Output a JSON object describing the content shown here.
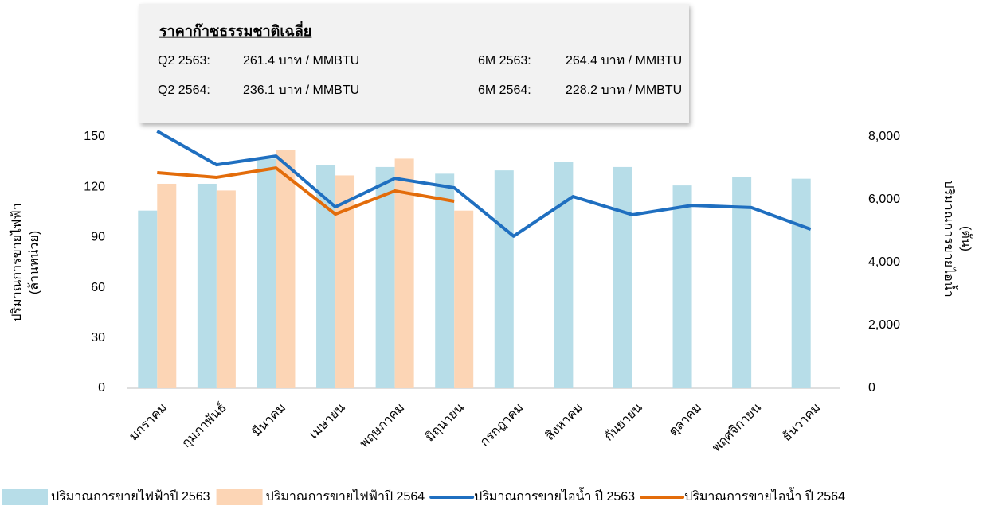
{
  "chart_data": {
    "type": "combo",
    "annotation": {
      "title": "ราคาก๊าซธรรมชาติเฉลี่ย",
      "rows": [
        [
          "Q2 2563:",
          "261.4 บาท / MMBTU",
          "6M 2563:",
          "264.4 บาท / MMBTU"
        ],
        [
          "Q2 2564:",
          "236.1 บาท / MMBTU",
          "6M 2564:",
          "228.2 บาท / MMBTU"
        ]
      ]
    },
    "ylabel": [
      "ปริมาณการขายไฟฟ้า",
      "(ล้านหน่วย)"
    ],
    "y2label": [
      "ปริมาณการขายไอน้ำ",
      "(ตัน)"
    ],
    "categories": [
      "มกราคม",
      "กุมภาพันธ์",
      "มีนาคม",
      "เมษายน",
      "พฤษภาคม",
      "มิถุนายน",
      "กรกฎาคม",
      "สิงหาคม",
      "กันยายน",
      "ตุลาคม",
      "พฤศจิกายน",
      "ธันวาคม"
    ],
    "series": [
      {
        "name": "ปริมาณการขายไฟฟ้าปี 2563",
        "type": "bar",
        "axis": "y",
        "color": "#b7dde8",
        "values": [
          106,
          122,
          137,
          133,
          132,
          128,
          130,
          135,
          132,
          121,
          126,
          125
        ]
      },
      {
        "name": "ปริมาณการขายไฟฟ้าปี 2564",
        "type": "bar",
        "axis": "y",
        "color": "#fcd5b5",
        "values": [
          122,
          118,
          142,
          127,
          137,
          106,
          null,
          null,
          null,
          null,
          null,
          null
        ]
      },
      {
        "name": "ปริมาณการขายไอน้ำ ปี 2563",
        "type": "line",
        "axis": "y2",
        "color": "#1f6fc0",
        "values": [
          8180,
          7110,
          7390,
          5770,
          6680,
          6380,
          4840,
          6100,
          5520,
          5820,
          5750,
          5060
        ]
      },
      {
        "name": "ปริมาณการขายไอน้ำ ปี 2564",
        "type": "line",
        "axis": "y2",
        "color": "#e36c0a",
        "values": [
          6860,
          6710,
          7010,
          5540,
          6280,
          5950,
          null,
          null,
          null,
          null,
          null,
          null
        ]
      }
    ],
    "ylim": [
      0,
      150
    ],
    "yticks": [
      0,
      30,
      60,
      90,
      120,
      150
    ],
    "y2lim": [
      0,
      8000
    ],
    "y2ticks": [
      0,
      {
        "value": 2000,
        "label": "2,000"
      },
      {
        "value": 4000,
        "label": "4,000"
      },
      {
        "value": 6000,
        "label": "6,000"
      },
      {
        "value": 8000,
        "label": "8,000"
      }
    ],
    "legend": "bottom"
  }
}
